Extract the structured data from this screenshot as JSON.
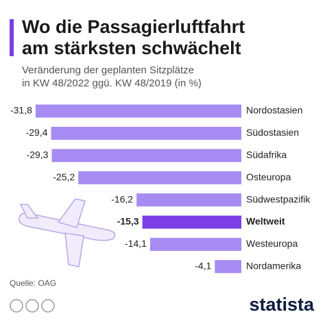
{
  "chart_data": {
    "type": "hbar",
    "title": [
      "Wo die Passagierluftfahrt",
      "am stärksten schwächelt"
    ],
    "subtitle": [
      "Veränderung der geplanten Sitzplätze",
      "in KW 48/2022 ggü. KW 48/2019 (in %)"
    ],
    "categories": [
      "Nordostasien",
      "Südostasien",
      "Südafrika",
      "Osteuropa",
      "Südwestpazifik",
      "Weltweit",
      "Westeuropa",
      "Nordamerika"
    ],
    "values": [
      -31.8,
      -29.4,
      -29.3,
      -25.2,
      -16.2,
      -15.3,
      -14.1,
      -4.1
    ],
    "value_labels": [
      "-31,8",
      "-29,4",
      "-29,3",
      "-25,2",
      "-16,2",
      "-15,3",
      "-14,1",
      "-4,1"
    ],
    "colors": [
      "#a68cf2",
      "#a68cf2",
      "#a68cf2",
      "#a68cf2",
      "#a68cf2",
      "#7b3fe4",
      "#a68cf2",
      "#a68cf2"
    ],
    "xlim": [
      -32,
      0
    ],
    "source": "Quelle: OAG",
    "brand": "statista"
  }
}
